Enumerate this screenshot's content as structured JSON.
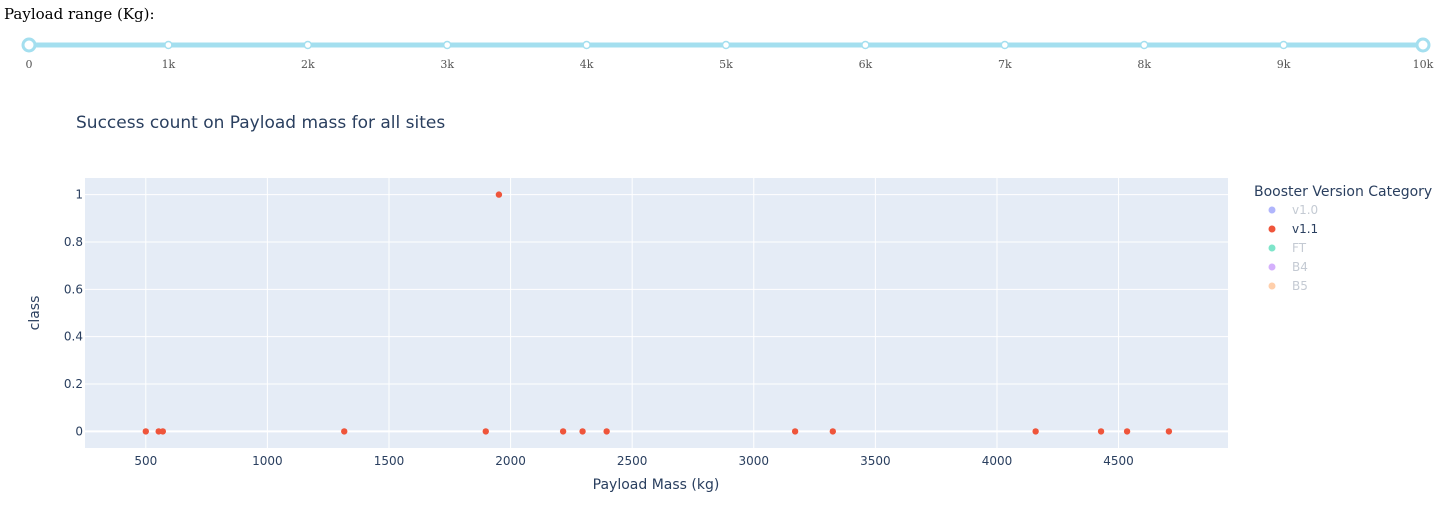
{
  "slider": {
    "label": "Payload range (Kg):",
    "min": 0,
    "max": 10000,
    "selected_range": [
      0,
      10000
    ],
    "marks": [
      {
        "value": 0,
        "label": "0"
      },
      {
        "value": 1000,
        "label": "1k"
      },
      {
        "value": 2000,
        "label": "2k"
      },
      {
        "value": 3000,
        "label": "3k"
      },
      {
        "value": 4000,
        "label": "4k"
      },
      {
        "value": 5000,
        "label": "5k"
      },
      {
        "value": 6000,
        "label": "6k"
      },
      {
        "value": 7000,
        "label": "7k"
      },
      {
        "value": 8000,
        "label": "8k"
      },
      {
        "value": 9000,
        "label": "9k"
      },
      {
        "value": 10000,
        "label": "10k"
      }
    ],
    "track_color": "#a4dfef",
    "handle_color": "#a4dfef"
  },
  "chart_data": {
    "type": "scatter",
    "title": "Success count on Payload mass for all sites",
    "xlabel": "Payload Mass (kg)",
    "ylabel": "class",
    "xlim": [
      250,
      4950
    ],
    "ylim": [
      -0.07,
      1.07
    ],
    "x_ticks": [
      500,
      1000,
      1500,
      2000,
      2500,
      3000,
      3500,
      4000,
      4500
    ],
    "x_tick_labels": [
      "500",
      "1000",
      "1500",
      "2000",
      "2500",
      "3000",
      "3500",
      "4000",
      "4500"
    ],
    "y_ticks": [
      0,
      0.2,
      0.4,
      0.6,
      0.8,
      1
    ],
    "y_tick_labels": [
      "0",
      "0.2",
      "0.4",
      "0.6",
      "0.8",
      "1"
    ],
    "grid": true,
    "plot_bg": "#e5ecf6",
    "legend": {
      "title": "Booster Version Category",
      "placement": "right",
      "items": [
        {
          "name": "v1.0",
          "color": "#636efa",
          "active": false
        },
        {
          "name": "v1.1",
          "color": "#ef553b",
          "active": true
        },
        {
          "name": "FT",
          "color": "#00cc96",
          "active": false
        },
        {
          "name": "B4",
          "color": "#ab63fa",
          "active": false
        },
        {
          "name": "B5",
          "color": "#ffa15a",
          "active": false
        }
      ]
    },
    "series": [
      {
        "name": "v1.1",
        "color": "#ef553b",
        "points": [
          {
            "x": 500,
            "y": 0
          },
          {
            "x": 553,
            "y": 0
          },
          {
            "x": 570,
            "y": 0
          },
          {
            "x": 1316,
            "y": 0
          },
          {
            "x": 1898,
            "y": 0
          },
          {
            "x": 1952,
            "y": 1
          },
          {
            "x": 2216,
            "y": 0
          },
          {
            "x": 2296,
            "y": 0
          },
          {
            "x": 2395,
            "y": 0
          },
          {
            "x": 3170,
            "y": 0
          },
          {
            "x": 3325,
            "y": 0
          },
          {
            "x": 4159,
            "y": 0
          },
          {
            "x": 4428,
            "y": 0
          },
          {
            "x": 4535,
            "y": 0
          },
          {
            "x": 4707,
            "y": 0
          }
        ]
      }
    ]
  }
}
